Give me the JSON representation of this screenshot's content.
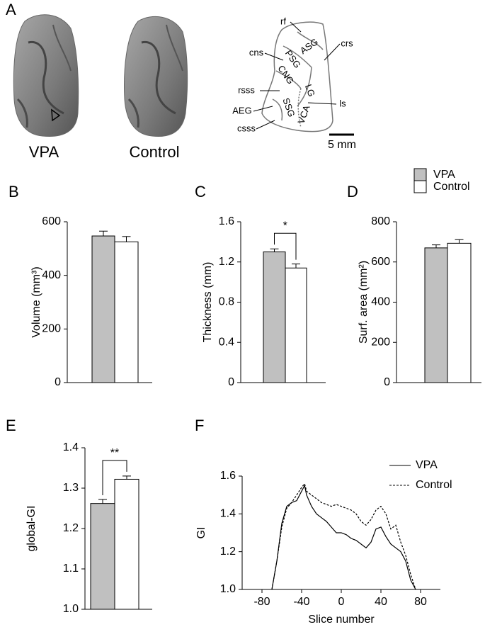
{
  "panel_a": {
    "panel_label": "A",
    "labels": [
      "VPA",
      "Control"
    ],
    "diagram_labels": [
      "rf",
      "ASG",
      "crs",
      "cns",
      "PSG",
      "CNG",
      "LG",
      "rsss",
      "ls",
      "AEG",
      "SSG",
      "VCA",
      "csss"
    ],
    "scale_bar": "5 mm"
  },
  "legend": {
    "items": [
      {
        "name": "VPA",
        "color": "#c0c0c0"
      },
      {
        "name": "Control",
        "color": "#ffffff"
      }
    ]
  },
  "chart_data": [
    {
      "type": "bar",
      "panel_label": "B",
      "ylabel": "Volume (mm³)",
      "values": [
        547,
        525
      ],
      "errors": [
        18,
        20
      ],
      "colors": [
        "#c0c0c0",
        "#ffffff"
      ],
      "ylim": [
        0,
        600
      ],
      "yticks": [
        0,
        200,
        400,
        600
      ]
    },
    {
      "type": "bar",
      "panel_label": "C",
      "ylabel": "Thickness (mm)",
      "values": [
        1.3,
        1.14
      ],
      "errors": [
        0.03,
        0.04
      ],
      "colors": [
        "#c0c0c0",
        "#ffffff"
      ],
      "ylim": [
        0,
        1.6
      ],
      "yticks": [
        0,
        0.4,
        0.8,
        1.2,
        1.6
      ],
      "annotation": "*"
    },
    {
      "type": "bar",
      "panel_label": "D",
      "ylabel": "Surf. area (mm²)",
      "values": [
        670,
        693
      ],
      "errors": [
        15,
        18
      ],
      "colors": [
        "#c0c0c0",
        "#ffffff"
      ],
      "ylim": [
        0,
        800
      ],
      "yticks": [
        0,
        200,
        400,
        600,
        800
      ]
    },
    {
      "type": "bar",
      "panel_label": "E",
      "ylabel": "global-GI",
      "values": [
        1.262,
        1.322
      ],
      "errors": [
        0.01,
        0.008
      ],
      "colors": [
        "#c0c0c0",
        "#ffffff"
      ],
      "ylim": [
        1,
        1.4
      ],
      "yticks": [
        {
          "value": 1,
          "label": "1.0"
        },
        1.1,
        1.2,
        1.3,
        1.4
      ],
      "annotation": "**"
    },
    {
      "type": "line",
      "panel_label": "F",
      "xlabel": "Slice number",
      "ylabel": "GI",
      "x": [
        -70,
        -65,
        -60,
        -55,
        -50,
        -45,
        -40,
        -37,
        -35,
        -30,
        -25,
        -20,
        -15,
        -10,
        -5,
        0,
        5,
        10,
        15,
        20,
        25,
        30,
        35,
        40,
        45,
        50,
        55,
        60,
        65,
        70,
        75
      ],
      "series": [
        {
          "name": "VPA",
          "color": "#000000",
          "style": "solid",
          "values": [
            1.0,
            1.15,
            1.35,
            1.44,
            1.46,
            1.47,
            1.52,
            1.55,
            1.5,
            1.44,
            1.4,
            1.38,
            1.36,
            1.33,
            1.3,
            1.3,
            1.29,
            1.27,
            1.26,
            1.24,
            1.22,
            1.25,
            1.32,
            1.33,
            1.28,
            1.24,
            1.22,
            1.2,
            1.15,
            1.05,
            1.0
          ]
        },
        {
          "name": "Control",
          "color": "#000000",
          "style": "dashed",
          "values": [
            1.0,
            1.15,
            1.33,
            1.43,
            1.46,
            1.5,
            1.54,
            1.56,
            1.52,
            1.5,
            1.48,
            1.46,
            1.45,
            1.44,
            1.45,
            1.44,
            1.43,
            1.42,
            1.4,
            1.36,
            1.34,
            1.37,
            1.42,
            1.44,
            1.4,
            1.32,
            1.34,
            1.25,
            1.18,
            1.08,
            1.0
          ]
        }
      ],
      "xlim": [
        -100,
        100
      ],
      "xticks": [
        -80,
        -40,
        0,
        40,
        80
      ],
      "ylim": [
        1,
        1.6
      ],
      "yticks": [
        {
          "value": 1,
          "label": "1.0"
        },
        1.2,
        1.4,
        1.6
      ]
    }
  ]
}
